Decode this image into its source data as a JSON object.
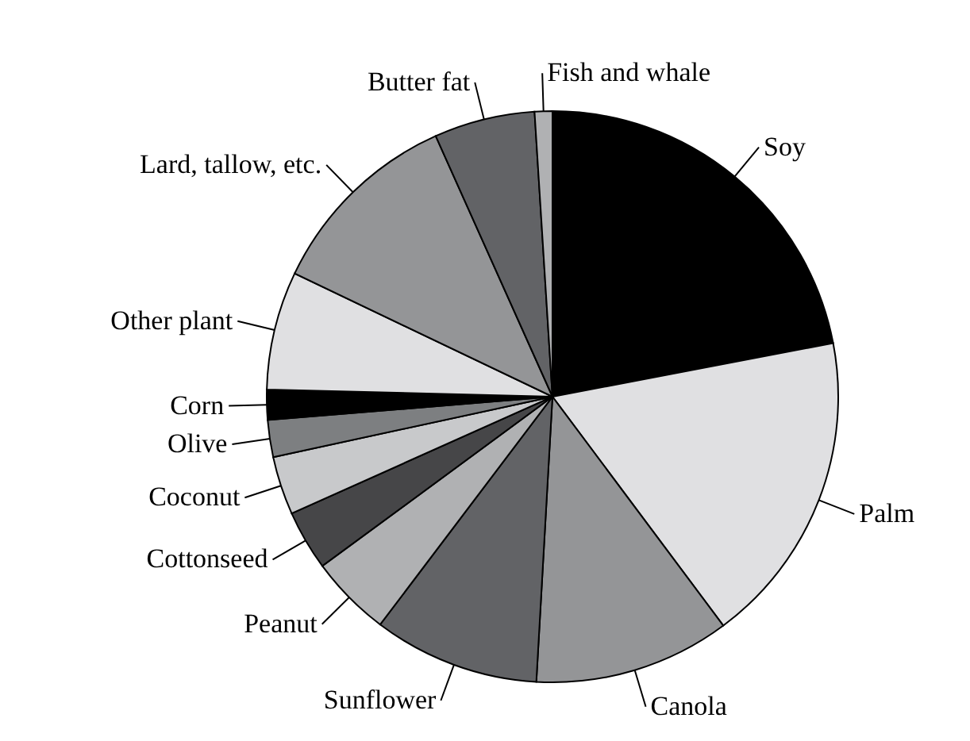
{
  "chart_data": {
    "type": "pie",
    "categories": [
      "Soy",
      "Palm",
      "Canola",
      "Sunflower",
      "Peanut",
      "Cottonseed",
      "Coconut",
      "Olive",
      "Corn",
      "Other plant",
      "Lard, tallow, etc.",
      "Butter fat",
      "Fish and whale"
    ],
    "values": [
      22.0,
      17.8,
      11.1,
      9.4,
      4.6,
      3.4,
      3.3,
      2.1,
      1.7,
      6.7,
      11.2,
      5.7,
      1.0
    ],
    "colors": [
      "#000000",
      "#e0e0e2",
      "#949597",
      "#626366",
      "#b0b1b3",
      "#464648",
      "#c8c9cb",
      "#7d7f81",
      "#000000",
      "#e0e0e2",
      "#949597",
      "#626366",
      "#b0b1b3"
    ]
  }
}
